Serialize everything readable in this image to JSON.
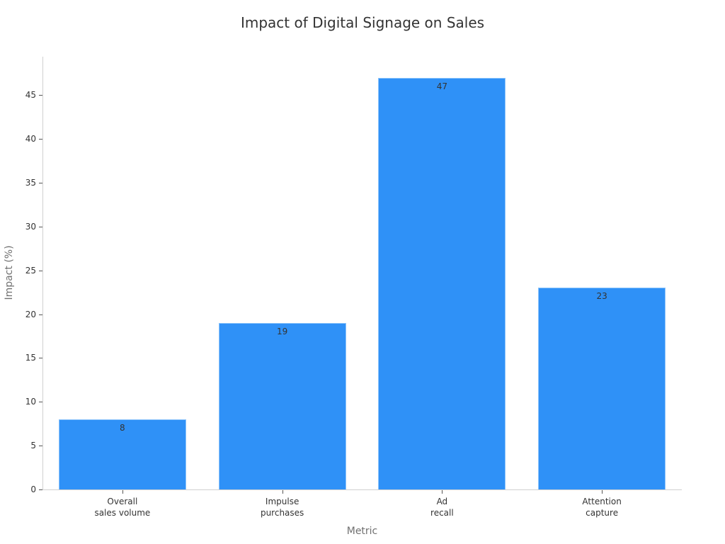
{
  "chart_data": {
    "type": "bar",
    "title": "Impact of Digital Signage on Sales",
    "xlabel": "Metric",
    "ylabel": "Impact (%)",
    "categories": [
      "Overall sales volume",
      "Impulse purchases",
      "Ad recall",
      "Attention capture"
    ],
    "category_lines": [
      [
        "Overall",
        "sales volume"
      ],
      [
        "Impulse",
        "purchases"
      ],
      [
        "Ad",
        "recall"
      ],
      [
        "Attention",
        "capture"
      ]
    ],
    "values": [
      8,
      19,
      47,
      23
    ],
    "data_labels": [
      "8",
      "19",
      "47",
      "23"
    ],
    "yticks": [
      0,
      5,
      10,
      15,
      20,
      25,
      30,
      35,
      40,
      45
    ],
    "ylim": [
      0,
      49.4
    ],
    "grid": false,
    "legend": null,
    "bar_color": "#2f91f7"
  }
}
